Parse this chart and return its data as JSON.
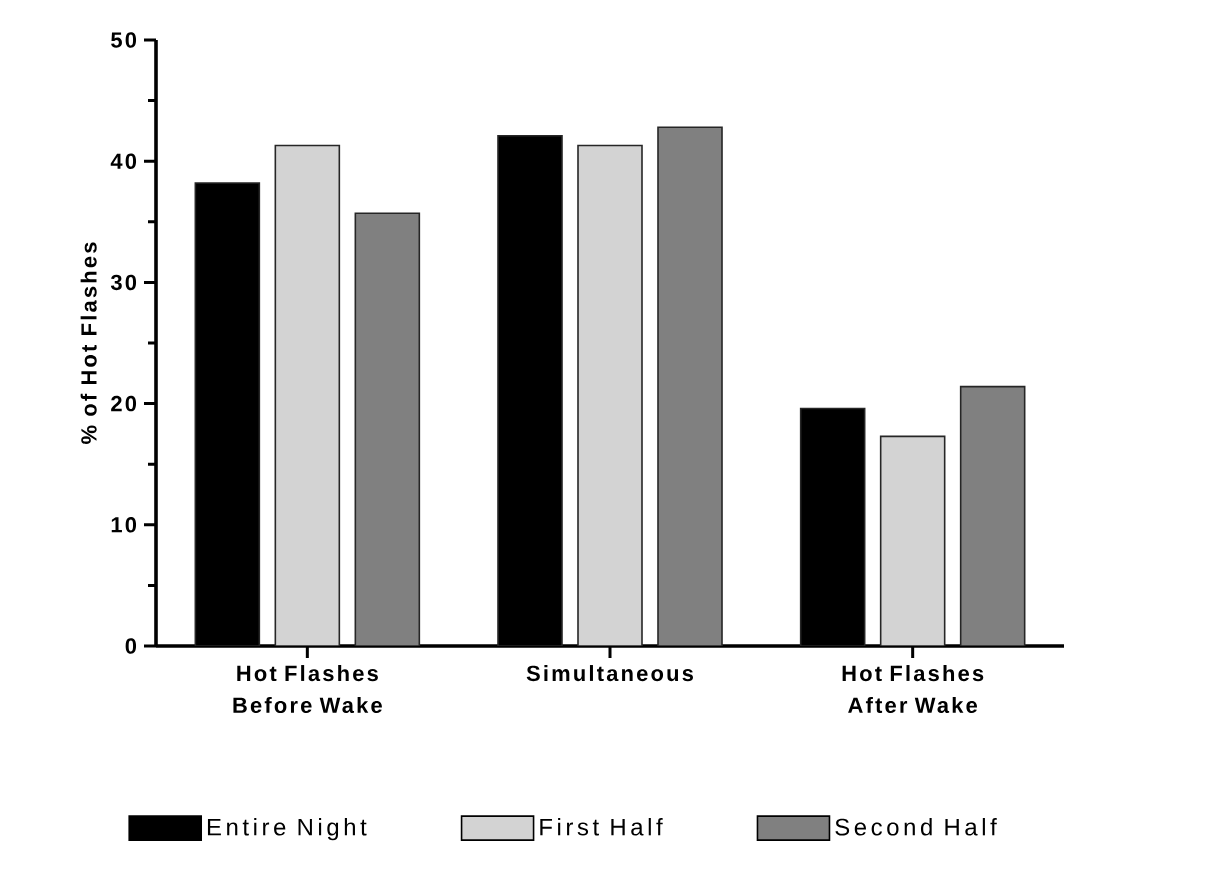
{
  "chart_data": {
    "type": "bar",
    "ylabel": "% of Hot Flashes",
    "categories": [
      "Hot Flashes Before Wake",
      "Simultaneous",
      "Hot Flashes After Wake"
    ],
    "series": [
      {
        "name": "Entire Night",
        "color": "#000000",
        "values": [
          38.2,
          42.1,
          19.6
        ]
      },
      {
        "name": "First Half",
        "color": "#d3d3d3",
        "values": [
          41.3,
          41.3,
          17.3
        ]
      },
      {
        "name": "Second Half",
        "color": "#808080",
        "values": [
          35.7,
          42.8,
          21.4
        ]
      }
    ],
    "ylim": [
      0,
      50
    ],
    "yticks": [
      0,
      10,
      20,
      30,
      40,
      50
    ],
    "legend": "bottom"
  }
}
